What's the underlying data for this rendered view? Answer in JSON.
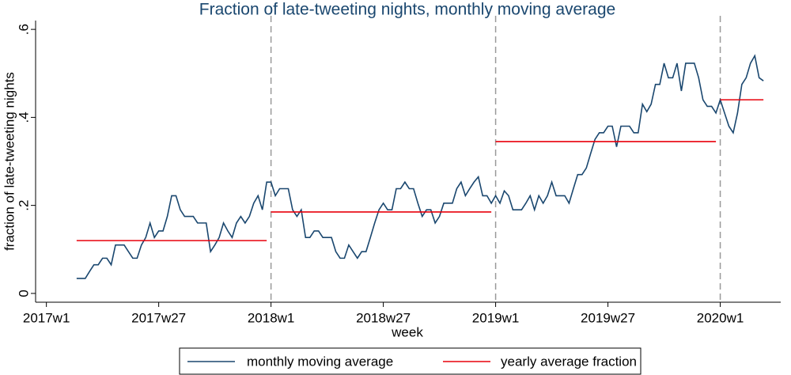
{
  "chart_data": {
    "type": "line",
    "title": "Fraction of late-tweeting nights, monthly moving average",
    "xlabel": "week",
    "ylabel": "fraction of late-tweeting nights",
    "xlim": [
      2961.5,
      3134
    ],
    "ylim": [
      -0.02,
      0.62
    ],
    "xticks": [
      {
        "value": 2964,
        "label": "2017w1"
      },
      {
        "value": 2990,
        "label": "2017w27"
      },
      {
        "value": 3016,
        "label": "2018w1"
      },
      {
        "value": 3042,
        "label": "2018w27"
      },
      {
        "value": 3068,
        "label": "2019w1"
      },
      {
        "value": 3094,
        "label": "2019w27"
      },
      {
        "value": 3120,
        "label": "2020w1"
      }
    ],
    "yticks": [
      0,
      {
        "value": 0.2,
        "label": ".2"
      },
      {
        "value": 0.4,
        "label": ".4"
      },
      {
        "value": 0.6,
        "label": ".6"
      }
    ],
    "xlines": [
      3016,
      3068,
      3120
    ],
    "x": [
      2971,
      2972,
      2973,
      2974,
      2975,
      2976,
      2977,
      2978,
      2979,
      2980,
      2981,
      2982,
      2983,
      2984,
      2985,
      2986,
      2987,
      2988,
      2989,
      2990,
      2991,
      2992,
      2993,
      2994,
      2995,
      2996,
      2997,
      2998,
      2999,
      3000,
      3001,
      3002,
      3003,
      3004,
      3005,
      3006,
      3007,
      3008,
      3009,
      3010,
      3011,
      3012,
      3013,
      3014,
      3015,
      3016,
      3017,
      3018,
      3019,
      3020,
      3021,
      3022,
      3023,
      3024,
      3025,
      3026,
      3027,
      3028,
      3029,
      3030,
      3031,
      3032,
      3033,
      3034,
      3035,
      3036,
      3037,
      3038,
      3039,
      3040,
      3041,
      3042,
      3043,
      3044,
      3045,
      3046,
      3047,
      3048,
      3049,
      3050,
      3051,
      3052,
      3053,
      3054,
      3055,
      3056,
      3057,
      3058,
      3059,
      3060,
      3061,
      3062,
      3063,
      3064,
      3065,
      3066,
      3067,
      3068,
      3069,
      3070,
      3071,
      3072,
      3073,
      3074,
      3075,
      3076,
      3077,
      3078,
      3079,
      3080,
      3081,
      3082,
      3083,
      3084,
      3085,
      3086,
      3087,
      3088,
      3089,
      3090,
      3091,
      3092,
      3093,
      3094,
      3095,
      3096,
      3097,
      3098,
      3099,
      3100,
      3101,
      3102,
      3103,
      3104,
      3105,
      3106,
      3107,
      3108,
      3109,
      3110,
      3111,
      3112,
      3113,
      3114,
      3115,
      3116,
      3117,
      3118,
      3119,
      3120,
      3121,
      3122,
      3123,
      3124,
      3125,
      3126,
      3127,
      3128,
      3129,
      3130
    ],
    "series": [
      {
        "name": "monthly moving average",
        "color": "#1a476f",
        "values": [
          0.034,
          0.034,
          0.034,
          0.05,
          0.065,
          0.065,
          0.08,
          0.08,
          0.065,
          0.11,
          0.11,
          0.11,
          0.095,
          0.08,
          0.08,
          0.11,
          0.127,
          0.16,
          0.127,
          0.142,
          0.142,
          0.175,
          0.222,
          0.222,
          0.19,
          0.175,
          0.175,
          0.175,
          0.16,
          0.16,
          0.16,
          0.095,
          0.11,
          0.127,
          0.16,
          0.142,
          0.127,
          0.16,
          0.175,
          0.16,
          0.175,
          0.205,
          0.222,
          0.19,
          0.253,
          0.253,
          0.222,
          0.238,
          0.238,
          0.238,
          0.19,
          0.175,
          0.19,
          0.127,
          0.127,
          0.142,
          0.142,
          0.127,
          0.127,
          0.127,
          0.095,
          0.08,
          0.08,
          0.11,
          0.095,
          0.08,
          0.095,
          0.095,
          0.127,
          0.16,
          0.19,
          0.205,
          0.19,
          0.19,
          0.238,
          0.238,
          0.253,
          0.238,
          0.238,
          0.205,
          0.175,
          0.19,
          0.19,
          0.16,
          0.175,
          0.205,
          0.205,
          0.205,
          0.238,
          0.253,
          0.222,
          0.238,
          0.253,
          0.265,
          0.222,
          0.222,
          0.205,
          0.222,
          0.205,
          0.233,
          0.222,
          0.19,
          0.19,
          0.19,
          0.205,
          0.222,
          0.19,
          0.222,
          0.205,
          0.222,
          0.253,
          0.222,
          0.222,
          0.222,
          0.205,
          0.238,
          0.27,
          0.27,
          0.285,
          0.318,
          0.35,
          0.365,
          0.365,
          0.38,
          0.38,
          0.333,
          0.38,
          0.38,
          0.38,
          0.365,
          0.365,
          0.43,
          0.413,
          0.43,
          0.475,
          0.475,
          0.523,
          0.49,
          0.49,
          0.523,
          0.46,
          0.523,
          0.523,
          0.523,
          0.49,
          0.44,
          0.425,
          0.425,
          0.41,
          0.44,
          0.41,
          0.38,
          0.365,
          0.41,
          0.475,
          0.49,
          0.523,
          0.54,
          0.49,
          0.483
        ]
      }
    ],
    "yearly_average": {
      "name": "yearly average fraction",
      "color": "#e8000b",
      "segments": [
        {
          "x_start": 2971,
          "x_end": 3015,
          "value": 0.12
        },
        {
          "x_start": 3016,
          "x_end": 3067,
          "value": 0.185
        },
        {
          "x_start": 3068,
          "x_end": 3119,
          "value": 0.345
        },
        {
          "x_start": 3120,
          "x_end": 3130,
          "value": 0.44
        }
      ]
    }
  }
}
